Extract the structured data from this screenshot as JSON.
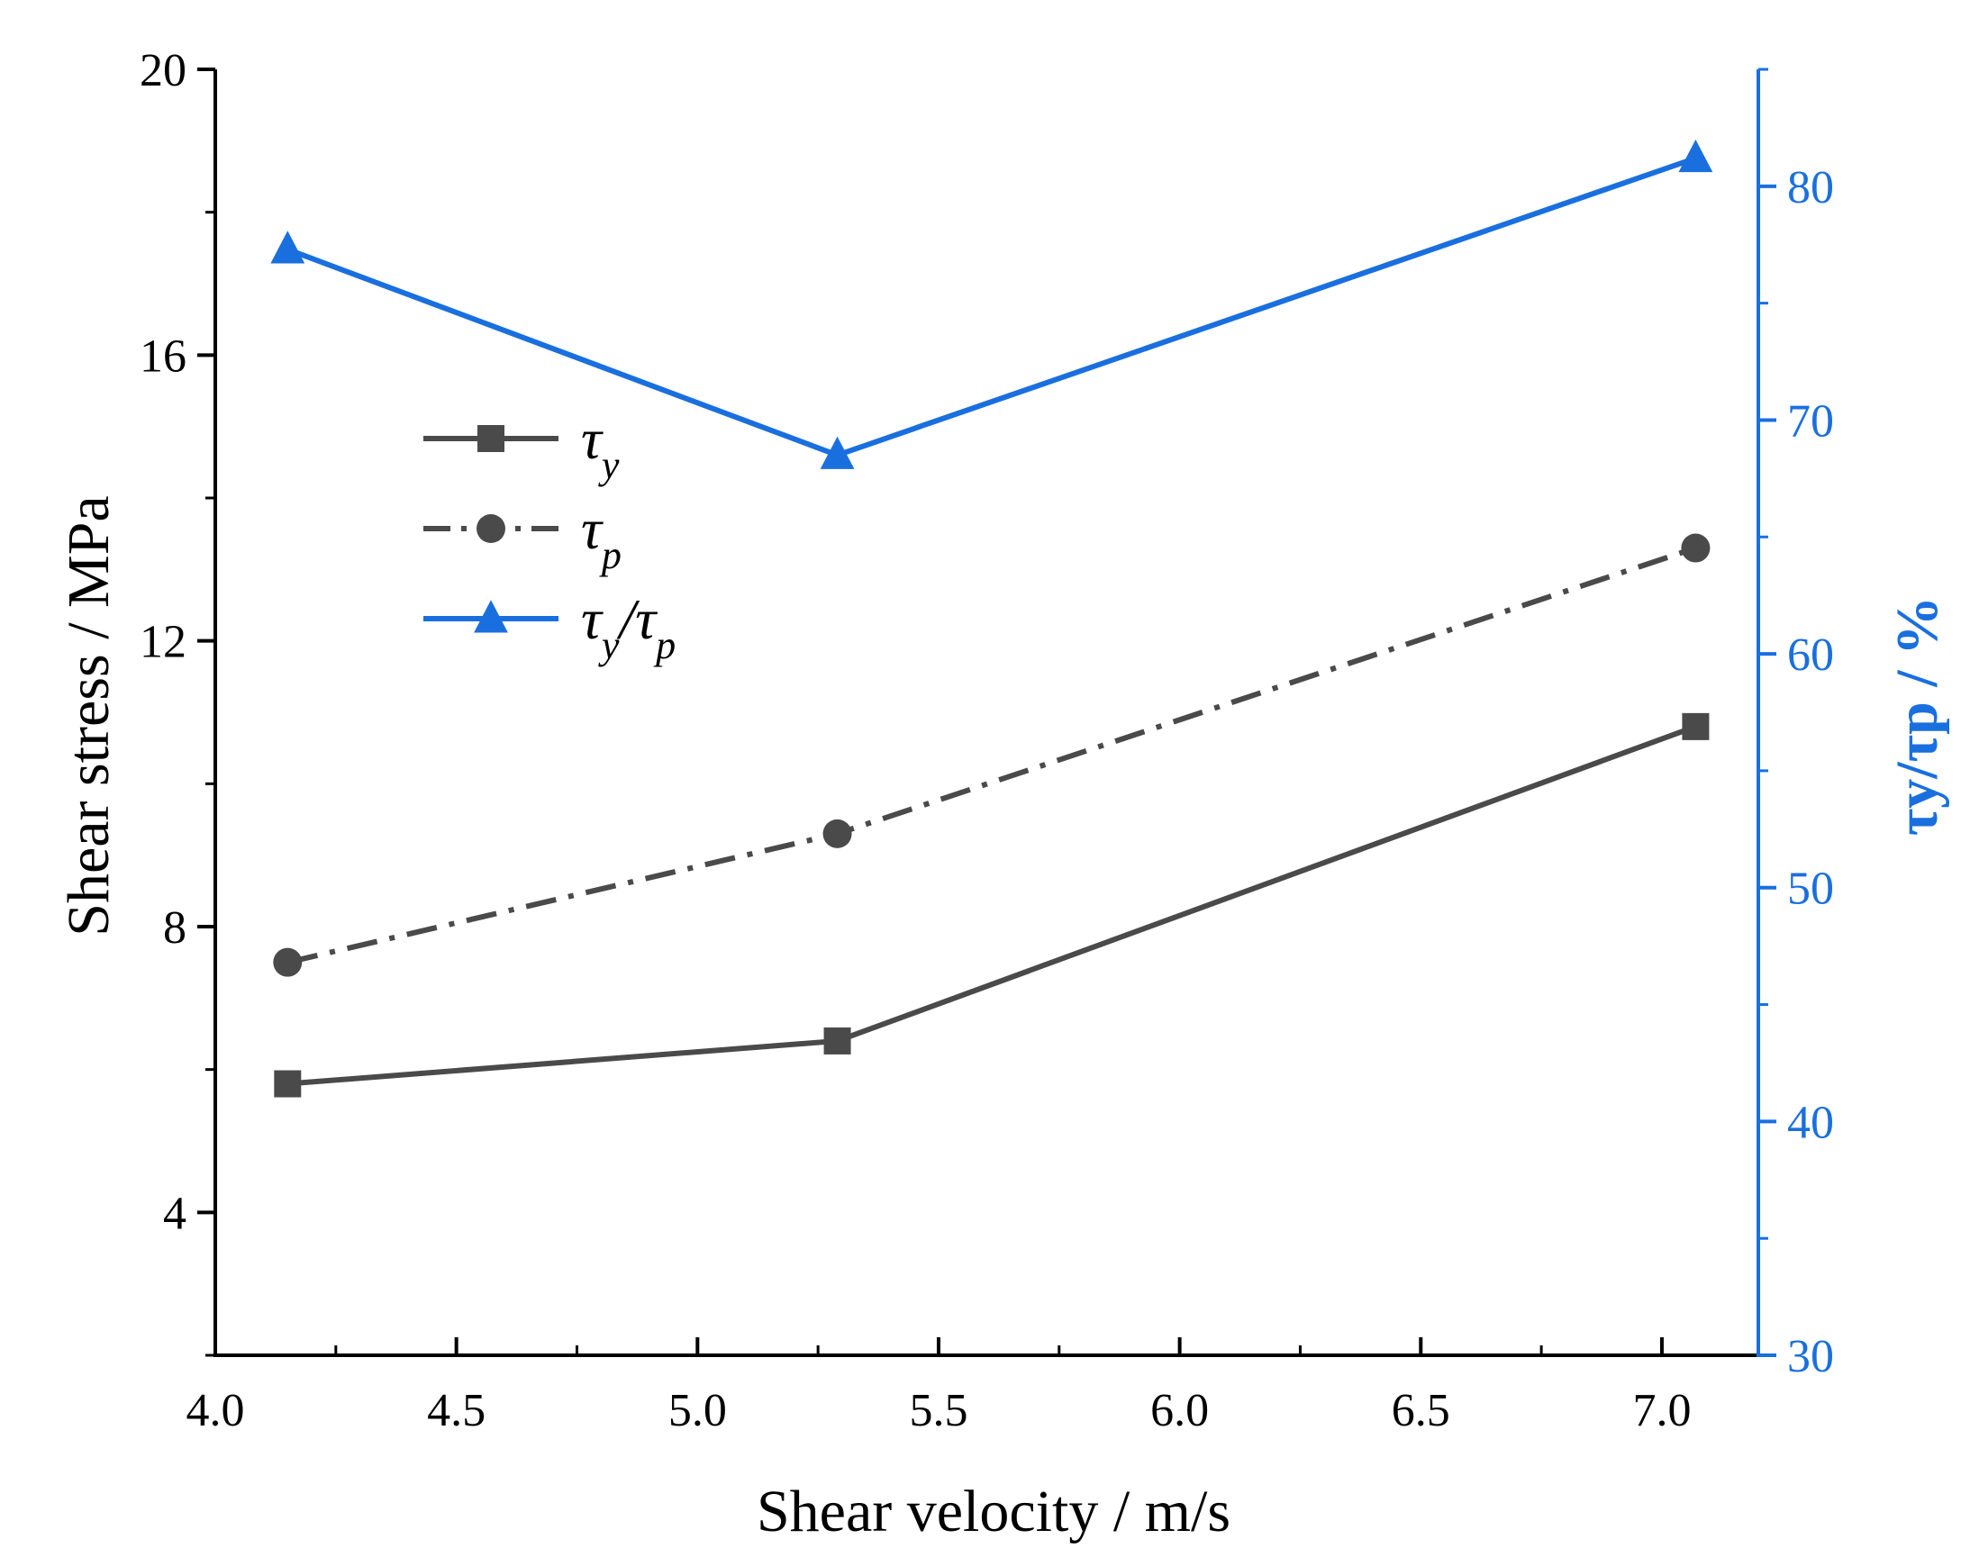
{
  "colors": {
    "left_axis": "#000000",
    "right_axis": "#1a6fdf",
    "series_dark": "#4a4a4a",
    "series_blue": "#1a6fdf",
    "background": "#ffffff"
  },
  "chart_data": {
    "type": "line",
    "x": [
      4.15,
      5.29,
      7.07
    ],
    "xlabel": "Shear velocity / m/s",
    "xlim": [
      4.0,
      7.2
    ],
    "x_ticks": [
      4.0,
      4.5,
      5.0,
      5.5,
      6.0,
      6.5,
      7.0
    ],
    "x_tick_labels": [
      "4.0",
      "4.5",
      "5.0",
      "5.5",
      "6.0",
      "6.5",
      "7.0"
    ],
    "ylabel_left": "Shear stress / MPa",
    "ylim_left": [
      2,
      20
    ],
    "y_ticks_left": [
      4,
      8,
      12,
      16,
      20
    ],
    "y_tick_labels_left": [
      "4",
      "8",
      "12",
      "16",
      "20"
    ],
    "ylabel_right": "τy/τp / %",
    "ylim_right": [
      30,
      85
    ],
    "y_ticks_right": [
      30,
      40,
      50,
      60,
      70,
      80
    ],
    "y_tick_labels_right": [
      "30",
      "40",
      "50",
      "60",
      "70",
      "80"
    ],
    "legend_position": "upper-left",
    "series": [
      {
        "name": "τy",
        "label_main": "τ",
        "label_sub": "y",
        "axis": "left",
        "marker": "square",
        "linestyle": "solid",
        "color_key": "series_dark",
        "values": [
          5.8,
          6.4,
          10.8
        ]
      },
      {
        "name": "τp",
        "label_main": "τ",
        "label_sub": "p",
        "axis": "left",
        "marker": "circle",
        "linestyle": "dashdot",
        "color_key": "series_dark",
        "values": [
          7.5,
          9.3,
          13.3
        ]
      },
      {
        "name": "τy/τp",
        "label_main": "τ",
        "label_sub": "y",
        "label_main2": "/τ",
        "label_sub2": "p",
        "axis": "right",
        "marker": "triangle",
        "linestyle": "solid",
        "color_key": "series_blue",
        "values": [
          77.3,
          68.5,
          81.2
        ]
      }
    ]
  }
}
